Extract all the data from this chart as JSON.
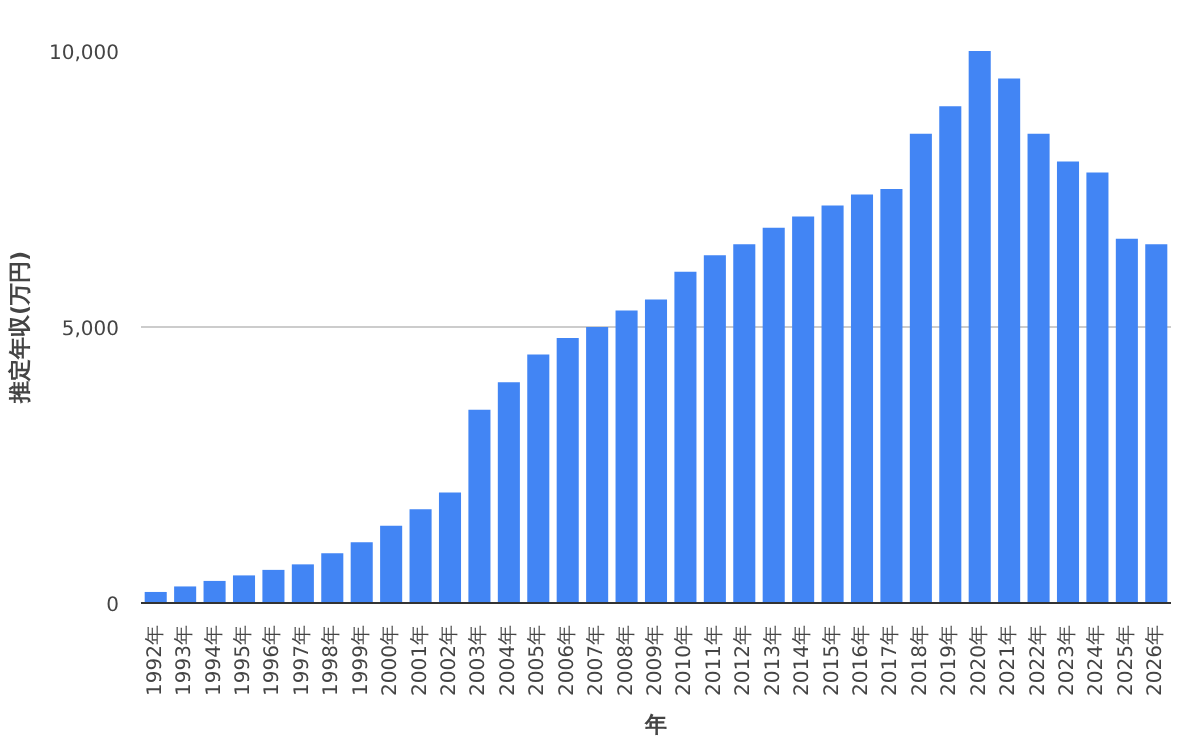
{
  "chart_data": {
    "type": "bar",
    "xlabel": "年",
    "ylabel": "推定年収(万円)",
    "categories": [
      "1992年",
      "1993年",
      "1994年",
      "1995年",
      "1996年",
      "1997年",
      "1998年",
      "1999年",
      "2000年",
      "2001年",
      "2002年",
      "2003年",
      "2004年",
      "2005年",
      "2006年",
      "2007年",
      "2008年",
      "2009年",
      "2010年",
      "2011年",
      "2012年",
      "2013年",
      "2014年",
      "2015年",
      "2016年",
      "2017年",
      "2018年",
      "2019年",
      "2020年",
      "2021年",
      "2022年",
      "2023年",
      "2024年",
      "2025年",
      "2026年"
    ],
    "values": [
      200,
      300,
      400,
      500,
      600,
      700,
      900,
      1100,
      1400,
      1700,
      2000,
      3500,
      4000,
      4500,
      4800,
      5000,
      5300,
      5500,
      6000,
      6300,
      6500,
      6800,
      7000,
      7200,
      7400,
      7500,
      8500,
      9000,
      10000,
      9500,
      8500,
      8000,
      7800,
      6600,
      6500
    ],
    "color": "#4285f4",
    "ylim": [
      0,
      10000
    ],
    "yticks": [
      0,
      {
        "value": 5000,
        "label": "5,000"
      },
      {
        "value": 10000,
        "label": "10,000"
      }
    ],
    "grid": "y"
  }
}
